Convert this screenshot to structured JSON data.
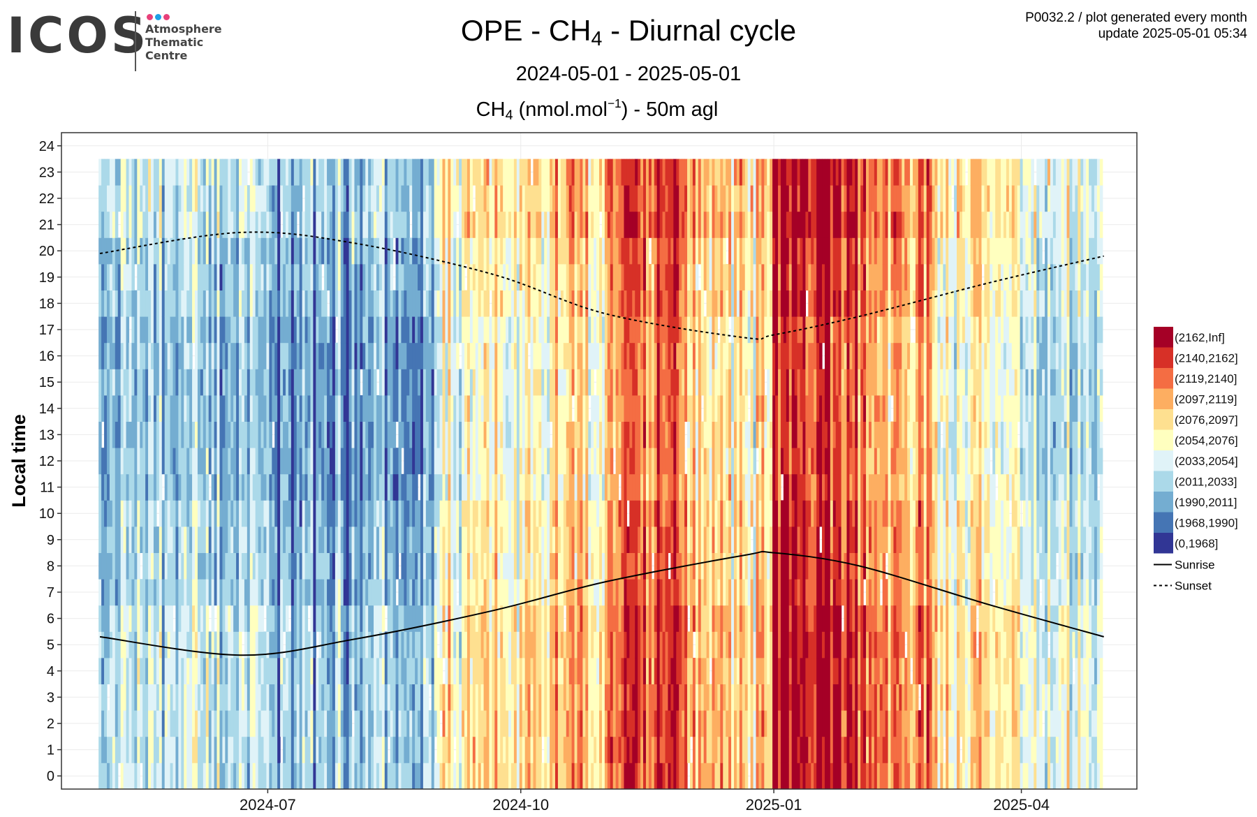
{
  "logo": {
    "wordmark": "ICOS",
    "lines": [
      "Atmosphere",
      "Thematic",
      "Centre"
    ],
    "dot_colors": [
      "#e8407a",
      "#1ea0e6",
      "#e8407a"
    ],
    "wordmark_color": "#3a3a3a"
  },
  "header": {
    "title_prefix": "OPE - CH",
    "title_sub": "4",
    "title_suffix": " - Diurnal cycle",
    "subtitle": "2024-05-01 - 2025-05-01",
    "panel_prefix": "CH",
    "panel_sub": "4",
    "panel_mid": " (nmol.mol",
    "panel_sup": "−1",
    "panel_suffix": ") - 50m agl",
    "meta_line1": "P0032.2 / plot generated every month",
    "meta_line2": "update  2025-05-01 05:34"
  },
  "chart_data": {
    "type": "heatmap",
    "title": "OPE - CH4 - Diurnal cycle",
    "subtitle": "2024-05-01 - 2025-05-01",
    "panel_label": "CH4 (nmol.mol-1) - 50m agl",
    "xlabel": "",
    "ylabel": "Local time",
    "x_range": [
      "2024-05-01",
      "2025-05-01"
    ],
    "y_range": [
      0,
      24
    ],
    "x_ticks": [
      "2024-07",
      "2024-10",
      "2025-01",
      "2025-04"
    ],
    "x_tick_dates": [
      "2024-07-01",
      "2024-10-01",
      "2025-01-01",
      "2025-04-01"
    ],
    "y_ticks": [
      0,
      1,
      2,
      3,
      4,
      5,
      6,
      7,
      8,
      9,
      10,
      11,
      12,
      13,
      14,
      15,
      16,
      17,
      18,
      19,
      20,
      21,
      22,
      23,
      24
    ],
    "grid": true,
    "legend_position": "right",
    "color_bins": [
      {
        "label": "(2162,Inf]",
        "color": "#a50026"
      },
      {
        "label": "(2140,2162]",
        "color": "#d73027"
      },
      {
        "label": "(2119,2140]",
        "color": "#f46d43"
      },
      {
        "label": "(2097,2119]",
        "color": "#fdae61"
      },
      {
        "label": "(2076,2097]",
        "color": "#fee090"
      },
      {
        "label": "(2054,2076]",
        "color": "#ffffbf"
      },
      {
        "label": "(2033,2054]",
        "color": "#e0f3f8"
      },
      {
        "label": "(2011,2033]",
        "color": "#abd9e9"
      },
      {
        "label": "(1990,2011]",
        "color": "#74add1"
      },
      {
        "label": "(1968,1990]",
        "color": "#4575b4"
      },
      {
        "label": "(0,1968]",
        "color": "#313695"
      }
    ],
    "monthly_dominant_bin_index": [
      {
        "month": "2024-05",
        "bin": 7
      },
      {
        "month": "2024-06",
        "bin": 7
      },
      {
        "month": "2024-07",
        "bin": 8
      },
      {
        "month": "2024-08",
        "bin": 8
      },
      {
        "month": "2024-09",
        "bin": 5
      },
      {
        "month": "2024-10",
        "bin": 4
      },
      {
        "month": "2024-11",
        "bin": 2
      },
      {
        "month": "2024-12",
        "bin": 4
      },
      {
        "month": "2025-01",
        "bin": 1
      },
      {
        "month": "2025-02",
        "bin": 3
      },
      {
        "month": "2025-03",
        "bin": 5
      },
      {
        "month": "2025-04",
        "bin": 6
      }
    ],
    "sunrise": {
      "name": "Sunrise",
      "points": [
        {
          "date": "2024-05-01",
          "hour": 5.3
        },
        {
          "date": "2024-06-21",
          "hour": 4.6
        },
        {
          "date": "2024-08-01",
          "hour": 5.2
        },
        {
          "date": "2024-09-21",
          "hour": 6.3
        },
        {
          "date": "2024-11-01",
          "hour": 7.4
        },
        {
          "date": "2024-12-21",
          "hour": 8.4
        },
        {
          "date": "2025-01-01",
          "hour": 8.5
        },
        {
          "date": "2025-02-01",
          "hour": 8.0
        },
        {
          "date": "2025-03-21",
          "hour": 6.5
        },
        {
          "date": "2025-05-01",
          "hour": 5.3
        }
      ]
    },
    "sunset": {
      "name": "Sunset",
      "points": [
        {
          "date": "2024-05-01",
          "hour": 19.9
        },
        {
          "date": "2024-06-21",
          "hour": 20.7
        },
        {
          "date": "2024-08-01",
          "hour": 20.3
        },
        {
          "date": "2024-09-21",
          "hour": 19.1
        },
        {
          "date": "2024-11-01",
          "hour": 17.6
        },
        {
          "date": "2024-12-21",
          "hour": 16.7
        },
        {
          "date": "2025-01-01",
          "hour": 16.8
        },
        {
          "date": "2025-02-01",
          "hour": 17.5
        },
        {
          "date": "2025-03-21",
          "hour": 18.8
        },
        {
          "date": "2025-05-01",
          "hour": 19.8
        }
      ]
    }
  }
}
